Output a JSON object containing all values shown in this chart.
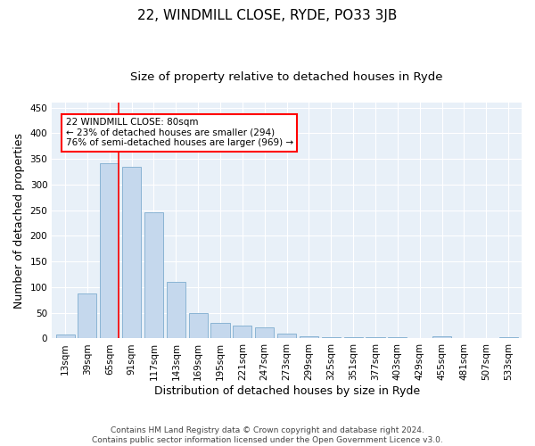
{
  "title": "22, WINDMILL CLOSE, RYDE, PO33 3JB",
  "subtitle": "Size of property relative to detached houses in Ryde",
  "xlabel": "Distribution of detached houses by size in Ryde",
  "ylabel": "Number of detached properties",
  "bar_color": "#c5d8ed",
  "bar_edge_color": "#8ab4d4",
  "background_color": "#e8f0f8",
  "categories": [
    "13sqm",
    "39sqm",
    "65sqm",
    "91sqm",
    "117sqm",
    "143sqm",
    "169sqm",
    "195sqm",
    "221sqm",
    "247sqm",
    "273sqm",
    "299sqm",
    "325sqm",
    "351sqm",
    "377sqm",
    "403sqm",
    "429sqm",
    "455sqm",
    "481sqm",
    "507sqm",
    "533sqm"
  ],
  "values": [
    7,
    87,
    342,
    335,
    246,
    111,
    49,
    31,
    25,
    22,
    10,
    5,
    3,
    3,
    3,
    2,
    0,
    4,
    1,
    1,
    3
  ],
  "ylim": [
    0,
    460
  ],
  "yticks": [
    0,
    50,
    100,
    150,
    200,
    250,
    300,
    350,
    400,
    450
  ],
  "annotation_text": "22 WINDMILL CLOSE: 80sqm\n← 23% of detached houses are smaller (294)\n76% of semi-detached houses are larger (969) →",
  "annotation_box_color": "white",
  "annotation_box_edge_color": "red",
  "red_line_color": "red",
  "footer_text": "Contains HM Land Registry data © Crown copyright and database right 2024.\nContains public sector information licensed under the Open Government Licence v3.0.",
  "grid_color": "#ffffff",
  "title_fontsize": 11,
  "subtitle_fontsize": 9.5,
  "tick_fontsize": 7.5,
  "ylabel_fontsize": 9,
  "xlabel_fontsize": 9,
  "footer_fontsize": 6.5
}
